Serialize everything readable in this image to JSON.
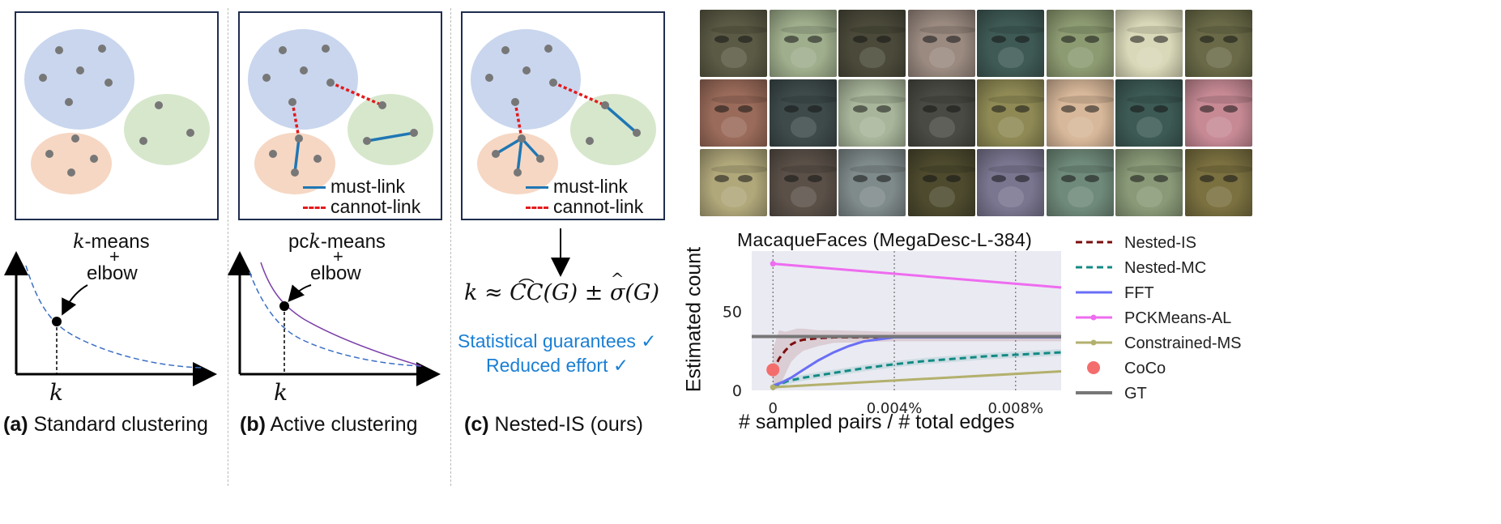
{
  "panel_a": {
    "caption_tag": "(a)",
    "caption_text": " Standard clustering",
    "method_label": "-means",
    "method_italic": "k",
    "plus": "+",
    "elbow": "elbow",
    "k_label": "k"
  },
  "panel_b": {
    "caption_tag": "(b)",
    "caption_text": " Active clustering",
    "method_prefix": "pc",
    "method_italic": "k",
    "method_suffix": "-means",
    "plus": "+",
    "elbow": "elbow",
    "k_label": "k",
    "legend_must": "must-link",
    "legend_cannot": "cannot-link"
  },
  "panel_c": {
    "caption_tag": "(c)",
    "caption_text": " Nested-IS (ours)",
    "legend_must": "must-link",
    "legend_cannot": "cannot-link",
    "formula_k": "k",
    "formula_approx": " ≈ ",
    "formula_cc": "CC",
    "formula_G1": "(G)",
    "formula_pm": " ± ",
    "formula_sigma": "σ",
    "formula_G2": "(G)",
    "guarantee": "Statistical guarantees ✓",
    "effort": "Reduced effort ✓"
  },
  "colors": {
    "blue_cluster": "#c9d6ee",
    "orange_cluster": "#f6d7c3",
    "green_cluster": "#d7e7cc",
    "must_link": "#1f77b4",
    "cannot_link": "#e31a1c",
    "accent_text": "#1a7fd4"
  },
  "face_grid": {
    "rows": 3,
    "cols": 8,
    "tones": [
      [
        "#5b5a45",
        "#9fae8c",
        "#4b4a3a",
        "#9a8a80",
        "#3f5a55",
        "#8d9b72",
        "#d9d8b8",
        "#6a6a48"
      ],
      [
        "#9a6b5a",
        "#3e4a4a",
        "#a8b59a",
        "#4a4a44",
        "#8f8a55",
        "#d8b89a",
        "#3d5a55",
        "#c78a95"
      ],
      [
        "#b0a77a",
        "#5a5048",
        "#7f8a8a",
        "#4d4a2e",
        "#7a7690",
        "#6f8a7a",
        "#8a9a78",
        "#7a7040"
      ]
    ]
  },
  "chart_data": {
    "type": "line",
    "title": "MacaqueFaces (MegaDesc-L-384)",
    "xlabel": "# sampled pairs / # total edges",
    "ylabel": "Estimated count",
    "xlim": [
      -0.0007,
      0.0095
    ],
    "ylim": [
      0,
      88
    ],
    "xticks": [
      0,
      0.004,
      0.008
    ],
    "xtick_labels": [
      "0",
      "0.004%",
      "0.008%"
    ],
    "yticks": [
      0,
      50
    ],
    "ytick_labels": [
      "0",
      "50"
    ],
    "grid": "vertical dotted",
    "legend_position": "right, outside",
    "series": [
      {
        "name": "Nested-IS",
        "color": "#7b0d0d",
        "style": "dashed",
        "x": [
          0,
          0.0002,
          0.0004,
          0.0006,
          0.0008,
          0.001,
          0.0015,
          0.002,
          0.004,
          0.006,
          0.008,
          0.0095
        ],
        "y": [
          12,
          20,
          25,
          29,
          31,
          32,
          33,
          33.5,
          33.5,
          33.5,
          33.5,
          33.5
        ],
        "band": [
          [
            0,
            26
          ],
          [
            2,
            38
          ],
          [
            10,
            37
          ],
          [
            18,
            38
          ],
          [
            22,
            39
          ],
          [
            25,
            39
          ],
          [
            28,
            38
          ],
          [
            30,
            38
          ],
          [
            31,
            37
          ],
          [
            31,
            37
          ],
          [
            31,
            37
          ],
          [
            31,
            37
          ]
        ]
      },
      {
        "name": "Nested-MC",
        "color": "#138a84",
        "style": "dashed",
        "x": [
          0,
          0.0005,
          0.001,
          0.002,
          0.003,
          0.004,
          0.005,
          0.006,
          0.007,
          0.008,
          0.0095
        ],
        "y": [
          2,
          6,
          8,
          11,
          14,
          16.5,
          18.5,
          20,
          21.5,
          22.5,
          24
        ],
        "band": [
          [
            0,
            4
          ],
          [
            4,
            8
          ],
          [
            6,
            10
          ],
          [
            9,
            13
          ],
          [
            12,
            16
          ],
          [
            14.5,
            18.5
          ],
          [
            16.5,
            20.5
          ],
          [
            18,
            22
          ],
          [
            19.5,
            23.5
          ],
          [
            20.5,
            24.5
          ],
          [
            22,
            26
          ]
        ]
      },
      {
        "name": "FFT",
        "color": "#6a6ef5",
        "style": "solid",
        "x": [
          0,
          0.0003,
          0.0006,
          0.001,
          0.0015,
          0.002,
          0.0025,
          0.003,
          0.004,
          0.006,
          0.008,
          0.0095
        ],
        "y": [
          3,
          5,
          8,
          13,
          19,
          24,
          28,
          31,
          33.5,
          33.5,
          33.5,
          33.5
        ]
      },
      {
        "name": "PCKMeans-AL",
        "color": "#ee6cf0",
        "style": "solid-marker",
        "x": [
          0,
          0.0095
        ],
        "y": [
          80,
          65
        ]
      },
      {
        "name": "Constrained-MS",
        "color": "#b3b06d",
        "style": "solid-marker",
        "x": [
          0,
          0.0095
        ],
        "y": [
          2,
          12
        ]
      },
      {
        "name": "CoCo",
        "color": "#f46d6d",
        "style": "point",
        "x": [
          0
        ],
        "y": [
          13
        ]
      },
      {
        "name": "GT",
        "color": "#777777",
        "style": "hline",
        "y": [
          34
        ]
      }
    ]
  }
}
